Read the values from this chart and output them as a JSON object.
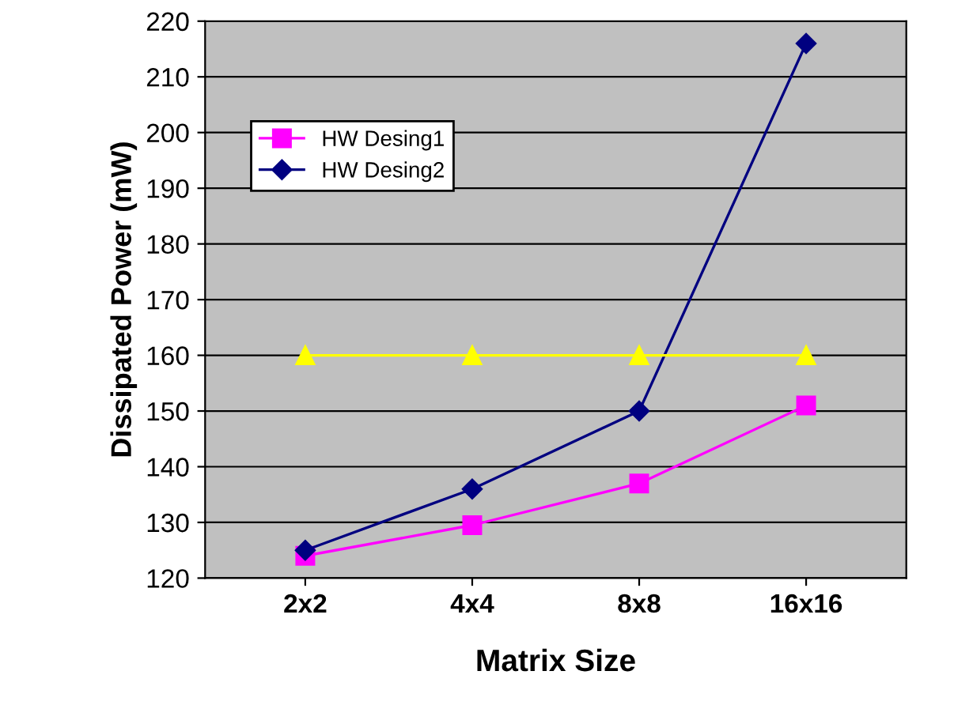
{
  "chart_data": {
    "type": "line",
    "xlabel": "Matrix Size",
    "ylabel": "Dissipated Power (mW)",
    "categories": [
      "2x2",
      "4x4",
      "8x8",
      "16x16"
    ],
    "series": [
      {
        "name": "HW Desing1",
        "color": "#ff00ff",
        "marker": "square",
        "values": [
          124,
          129.5,
          137,
          151
        ]
      },
      {
        "name": "HW Desing2",
        "color": "#000080",
        "marker": "diamond",
        "values": [
          125,
          136,
          150,
          216
        ]
      },
      {
        "color": "#ffff00",
        "marker": "triangle",
        "values": [
          160,
          160,
          160,
          160
        ]
      }
    ],
    "ylim": [
      120,
      220
    ],
    "yticks": [
      120,
      130,
      140,
      150,
      160,
      170,
      180,
      190,
      200,
      210,
      220
    ],
    "grid": "y",
    "legend": "top left"
  }
}
